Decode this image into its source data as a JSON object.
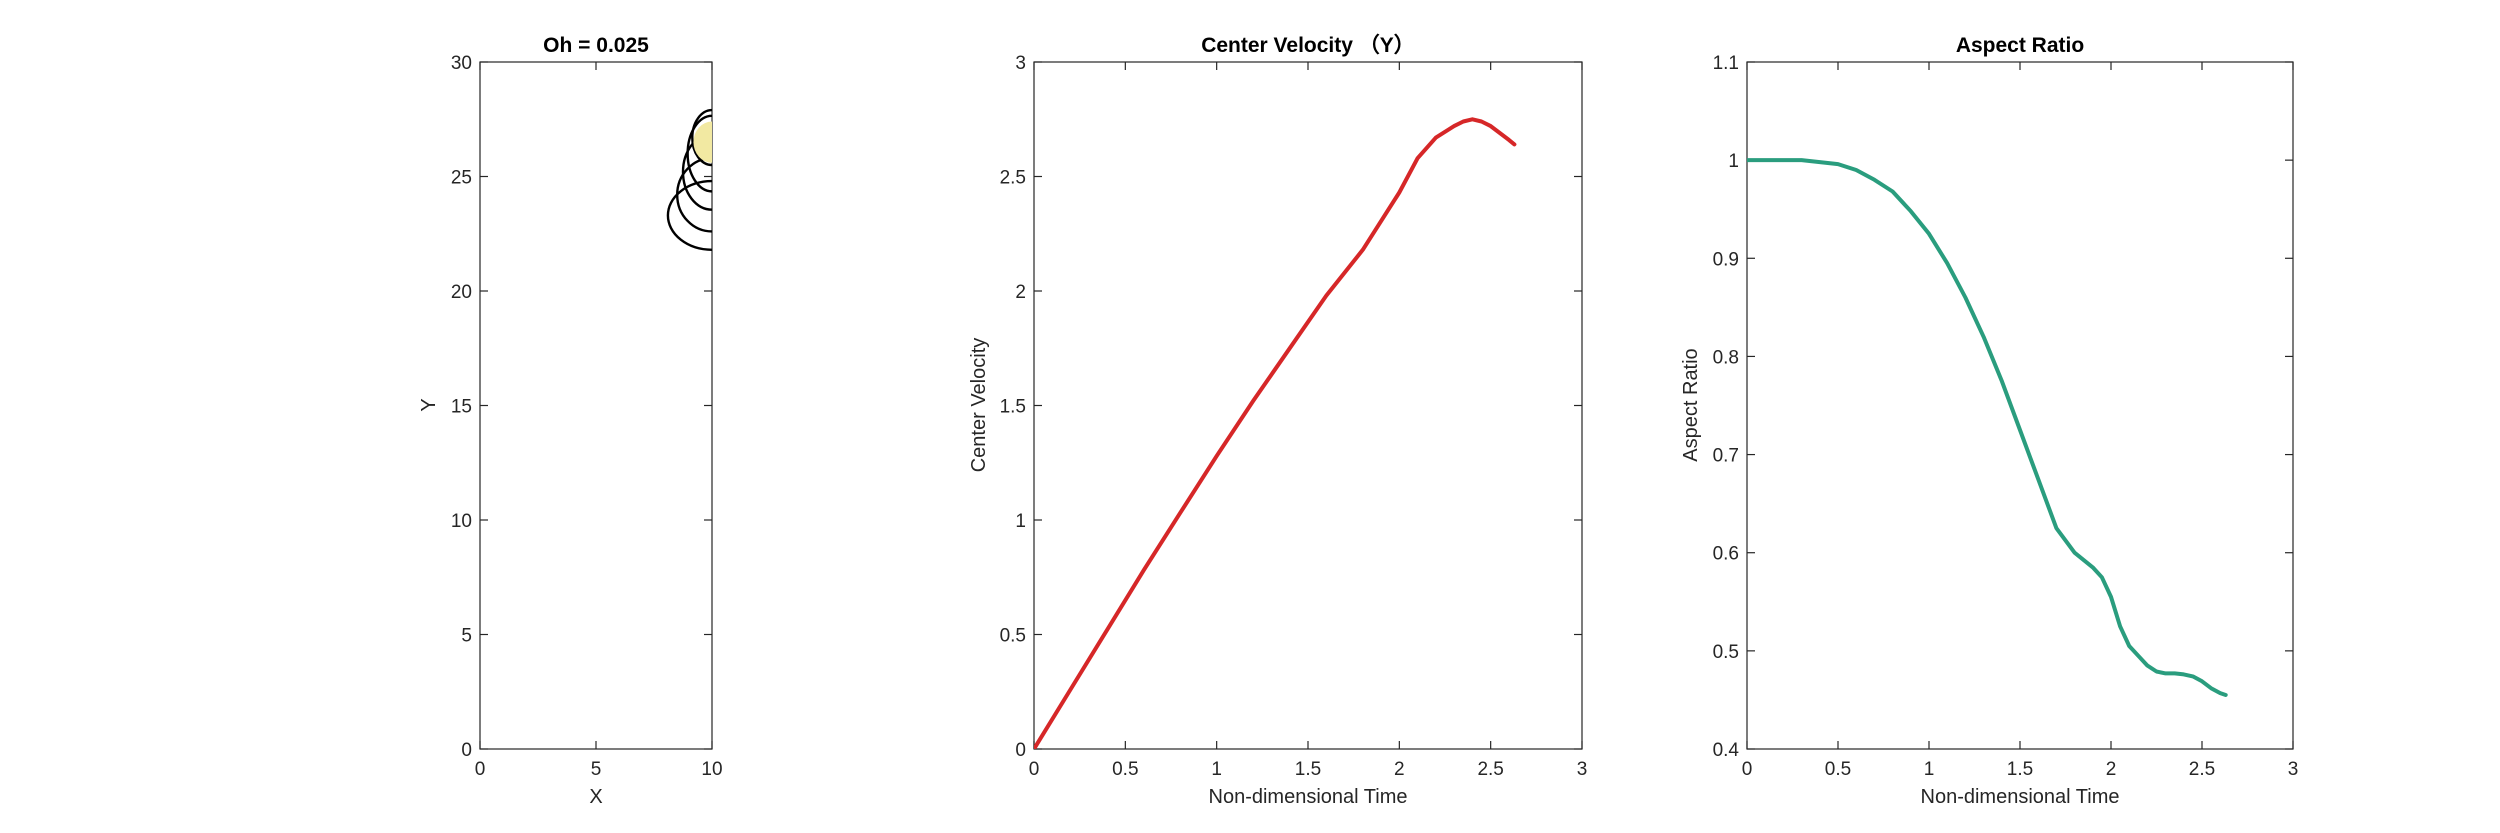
{
  "chart_data": [
    {
      "type": "line",
      "title": "Oh = 0.025",
      "xlabel": "X",
      "ylabel": "Y",
      "xlim": [
        0,
        10
      ],
      "ylim": [
        0,
        30
      ],
      "xticks": [
        "0",
        "5",
        "10"
      ],
      "yticks": [
        "0",
        "5",
        "10",
        "15",
        "20",
        "25",
        "30"
      ],
      "series": [
        {
          "color": "#000000",
          "contours": [
            {
              "cx": 10,
              "cy": 23.3,
              "rx": 1.9,
              "ry": 1.5
            },
            {
              "cx": 10,
              "cy": 24.2,
              "rx": 1.5,
              "ry": 1.6
            },
            {
              "cx": 10,
              "cy": 25.2,
              "rx": 1.25,
              "ry": 1.65
            },
            {
              "cx": 10,
              "cy": 26.0,
              "rx": 1.05,
              "ry": 1.65
            },
            {
              "cx": 10,
              "cy": 26.7,
              "rx": 0.85,
              "ry": 1.2
            }
          ]
        },
        {
          "color": "#f2e9a2",
          "fill": true,
          "contours": [
            {
              "cx": 10,
              "cy": 26.5,
              "rx": 0.8,
              "ry": 0.9
            }
          ]
        }
      ]
    },
    {
      "type": "line",
      "title": "Center Velocity （Y）",
      "xlabel": "Non-dimensional Time",
      "ylabel": "Center Velocity",
      "xlim": [
        0,
        3
      ],
      "ylim": [
        0,
        3
      ],
      "xticks": [
        "0",
        "0.5",
        "1",
        "1.5",
        "2",
        "2.5",
        "3"
      ],
      "yticks": [
        "0",
        "0.5",
        "1",
        "1.5",
        "2",
        "2.5",
        "3"
      ],
      "series": [
        {
          "color": "#d62728",
          "x": [
            0,
            0.2,
            0.4,
            0.6,
            0.8,
            1.0,
            1.2,
            1.4,
            1.6,
            1.8,
            2.0,
            2.1,
            2.2,
            2.3,
            2.35,
            2.4,
            2.45,
            2.5,
            2.55,
            2.6,
            2.63
          ],
          "y": [
            0,
            0.26,
            0.52,
            0.78,
            1.03,
            1.28,
            1.52,
            1.75,
            1.98,
            2.18,
            2.43,
            2.58,
            2.67,
            2.72,
            2.74,
            2.75,
            2.74,
            2.72,
            2.69,
            2.66,
            2.64
          ]
        }
      ]
    },
    {
      "type": "line",
      "title": "Aspect Ratio",
      "xlabel": "Non-dimensional Time",
      "ylabel": "Aspect Ratio",
      "xlim": [
        0,
        3
      ],
      "ylim": [
        0.4,
        1.1
      ],
      "xticks": [
        "0",
        "0.5",
        "1",
        "1.5",
        "2",
        "2.5",
        "3"
      ],
      "yticks": [
        "0.4",
        "0.5",
        "0.6",
        "0.7",
        "0.8",
        "0.9",
        "1",
        "1.1"
      ],
      "series": [
        {
          "color": "#2a9d7e",
          "x": [
            0,
            0.1,
            0.2,
            0.3,
            0.4,
            0.5,
            0.6,
            0.7,
            0.8,
            0.9,
            1.0,
            1.1,
            1.2,
            1.3,
            1.4,
            1.5,
            1.6,
            1.7,
            1.8,
            1.9,
            1.95,
            2.0,
            2.05,
            2.1,
            2.15,
            2.2,
            2.25,
            2.3,
            2.35,
            2.4,
            2.45,
            2.5,
            2.55,
            2.6,
            2.63
          ],
          "y": [
            1.0,
            1.0,
            1.0,
            1.0,
            0.998,
            0.996,
            0.99,
            0.98,
            0.968,
            0.948,
            0.925,
            0.895,
            0.86,
            0.82,
            0.775,
            0.725,
            0.675,
            0.625,
            0.6,
            0.585,
            0.575,
            0.555,
            0.525,
            0.505,
            0.495,
            0.485,
            0.479,
            0.477,
            0.477,
            0.476,
            0.474,
            0.469,
            0.462,
            0.457,
            0.455
          ]
        }
      ]
    }
  ]
}
